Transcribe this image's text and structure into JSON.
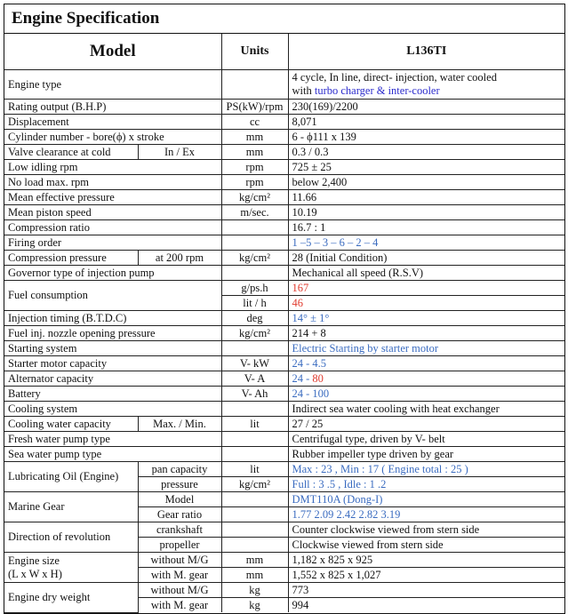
{
  "title": "Engine Specification",
  "header": {
    "model": "Model",
    "units": "Units",
    "value": "L136TI"
  },
  "colors": {
    "blue": "#3b6cc0",
    "strong_blue": "#2b2bcc",
    "red": "#e03a2e",
    "text": "#111111"
  },
  "rows": [
    {
      "label": "Engine type",
      "unit": "",
      "tall": true,
      "value": [
        {
          "text": "4 cycle, In line, direct- injection, water cooled\nwith "
        },
        {
          "text": "turbo charger & inter-cooler",
          "color": "#2b2bcc"
        }
      ]
    },
    {
      "label": "Rating output (B.H.P)",
      "unit": "PS(kW)/rpm",
      "value": [
        {
          "text": "230(169)/2200"
        }
      ]
    },
    {
      "label": "Displacement",
      "unit": "cc",
      "value": [
        {
          "text": "8,071"
        }
      ]
    },
    {
      "label": "Cylinder number - bore(ϕ) x stroke",
      "unit": "mm",
      "value": [
        {
          "text": "6 - ϕ111 x 139"
        }
      ]
    },
    {
      "label": "Valve clearance at cold",
      "sub": "In / Ex",
      "unit": "mm",
      "value": [
        {
          "text": "0.3 / 0.3"
        }
      ]
    },
    {
      "label": "Low idling rpm",
      "unit": "rpm",
      "value": [
        {
          "text": "725 ± 25"
        }
      ]
    },
    {
      "label": "No load max. rpm",
      "unit": "rpm",
      "value": [
        {
          "text": "below 2,400"
        }
      ]
    },
    {
      "label": "Mean effective pressure",
      "unit": "kg/cm²",
      "value": [
        {
          "text": "11.66"
        }
      ]
    },
    {
      "label": "Mean piston speed",
      "unit": "m/sec.",
      "value": [
        {
          "text": "10.19"
        }
      ]
    },
    {
      "label": "Compression ratio",
      "unit": "",
      "value": [
        {
          "text": "16.7 : 1"
        }
      ]
    },
    {
      "label": "Firing order",
      "unit": "",
      "value": [
        {
          "text": "1 –5 – 3 – 6 – 2 – 4",
          "color": "#3b6cc0"
        }
      ]
    },
    {
      "label": "Compression pressure",
      "sub": "at 200 rpm",
      "unit": "kg/cm²",
      "value": [
        {
          "text": "28 (Initial Condition)"
        }
      ]
    },
    {
      "label": "Governor type of injection pump",
      "unit": "",
      "value": [
        {
          "text": "Mechanical all speed (R.S.V)"
        }
      ]
    },
    {
      "label": "Fuel consumption",
      "unit_group": [
        {
          "unit": "g/ps.h",
          "value": [
            {
              "text": "167",
              "color": "#e03a2e"
            }
          ]
        },
        {
          "unit": "lit / h",
          "value": [
            {
              "text": "46",
              "color": "#e03a2e"
            }
          ]
        }
      ]
    },
    {
      "label": "Injection timing (B.T.D.C)",
      "unit": "deg",
      "value": [
        {
          "text": "14° ± 1°",
          "color": "#3b6cc0"
        }
      ]
    },
    {
      "label": "Fuel inj. nozzle opening pressure",
      "unit": "kg/cm²",
      "value": [
        {
          "text": "214 + 8"
        }
      ]
    },
    {
      "label": "Starting system",
      "unit": "",
      "value": [
        {
          "text": "Electric Starting by starter motor",
          "color": "#3b6cc0"
        }
      ]
    },
    {
      "label": "Starter motor capacity",
      "unit": "V- kW",
      "value": [
        {
          "text": "24    -    4.5",
          "color": "#3b6cc0"
        }
      ]
    },
    {
      "label": "Alternator capacity",
      "unit": "V- A",
      "value": [
        {
          "text": "24    -    ",
          "color": "#3b6cc0"
        },
        {
          "text": "80",
          "color": "#e03a2e"
        }
      ]
    },
    {
      "label": "Battery",
      "unit": "V- Ah",
      "value": [
        {
          "text": "24    -    100",
          "color": "#3b6cc0"
        }
      ]
    },
    {
      "label": "Cooling system",
      "unit": "",
      "value": [
        {
          "text": "Indirect sea water cooling with heat exchanger"
        }
      ]
    },
    {
      "label": "Cooling water capacity",
      "sub": "Max. / Min.",
      "unit": "lit",
      "value": [
        {
          "text": "27 / 25"
        }
      ]
    },
    {
      "label": "Fresh water pump type",
      "unit": "",
      "value": [
        {
          "text": "Centrifugal type, driven by V- belt"
        }
      ]
    },
    {
      "label": "Sea water pump type",
      "unit": "",
      "value": [
        {
          "text": "Rubber impeller type driven by gear"
        }
      ]
    },
    {
      "label": "Lubricating Oil (Engine)",
      "group": [
        {
          "sub": "pan capacity",
          "unit": "lit",
          "value": [
            {
              "text": "Max : 23    ,    Min : 17    ( Engine total : 25 )",
              "color": "#3b6cc0"
            }
          ]
        },
        {
          "sub": "pressure",
          "unit": "kg/cm²",
          "value": [
            {
              "text": "Full : 3 .5    ,    Idle : 1 .2",
              "color": "#3b6cc0"
            }
          ]
        }
      ]
    },
    {
      "label": "Marine Gear",
      "group": [
        {
          "sub": "Model",
          "unit": "",
          "value": [
            {
              "text": "DMT110A (Dong-I)",
              "color": "#3b6cc0"
            }
          ]
        },
        {
          "sub": "Gear ratio",
          "unit": "",
          "value": [
            {
              "text": "1.77    2.09    2.42    2.82    3.19",
              "color": "#3b6cc0"
            }
          ]
        }
      ]
    },
    {
      "label": "Direction of revolution",
      "group": [
        {
          "sub": "crankshaft",
          "unit": "",
          "value": [
            {
              "text": "Counter clockwise viewed from stern side"
            }
          ]
        },
        {
          "sub": "propeller",
          "unit": "",
          "value": [
            {
              "text": "Clockwise viewed from stern side"
            }
          ]
        }
      ]
    },
    {
      "label": "Engine size\n(L x W x H)",
      "group": [
        {
          "sub": "without M/G",
          "unit": "mm",
          "value": [
            {
              "text": "1,182 x 825 x 925"
            }
          ]
        },
        {
          "sub": "with M. gear",
          "unit": "mm",
          "value": [
            {
              "text": "1,552 x 825 x 1,027"
            }
          ]
        }
      ]
    },
    {
      "label": "Engine dry weight",
      "group": [
        {
          "sub": "without M/G",
          "unit": "kg",
          "value": [
            {
              "text": "773"
            }
          ]
        },
        {
          "sub": "with M. gear",
          "unit": "kg",
          "value": [
            {
              "text": "994"
            }
          ]
        }
      ]
    }
  ]
}
